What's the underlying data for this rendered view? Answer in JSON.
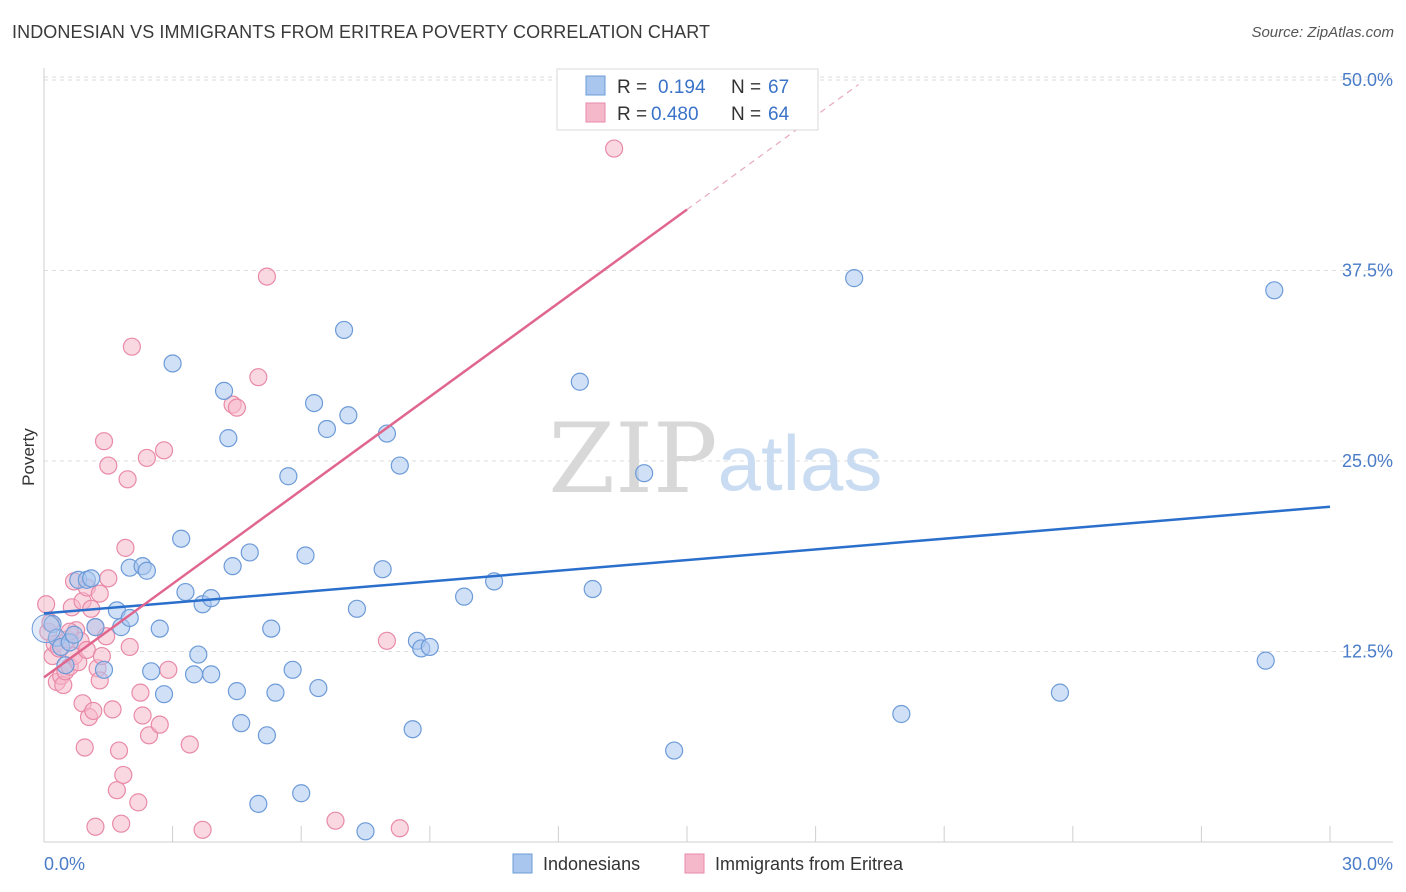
{
  "title": "INDONESIAN VS IMMIGRANTS FROM ERITREA POVERTY CORRELATION CHART",
  "source": "Source: ZipAtlas.com",
  "watermark": {
    "zip": "ZIP",
    "atlas": "atlas"
  },
  "colors": {
    "blue_fill": "#a9c7ee",
    "blue_stroke": "#6d9bd8",
    "blue_line": "#2b6fcc",
    "pink_fill": "#f5b8cb",
    "pink_stroke": "#e88aa8",
    "pink_line": "#e0668e",
    "tick_text": "#4a7cc7",
    "grid": "#dddddd"
  },
  "legend_box": {
    "rows": [
      {
        "r_label": "R =",
        "r_value": "0.194",
        "n_label": "N =",
        "n_value": "67"
      },
      {
        "r_label": "R =",
        "r_value": "0.480",
        "n_label": "N =",
        "n_value": "64"
      }
    ]
  },
  "bottom_legend": [
    "Indonesians",
    "Immigrants from Eritrea"
  ],
  "chart_data": {
    "type": "scatter",
    "title": "INDONESIAN VS IMMIGRANTS FROM ERITREA POVERTY CORRELATION CHART",
    "xlabel": "",
    "ylabel": "Poverty",
    "xlim": [
      0,
      30
    ],
    "ylim": [
      0,
      50
    ],
    "x_tick_labels": [
      "0.0%",
      "30.0%"
    ],
    "y_ticks": [
      12.5,
      25.0,
      37.5,
      50.0
    ],
    "y_tick_labels": [
      "12.5%",
      "25.0%",
      "37.5%",
      "50.0%"
    ],
    "grid": true,
    "legend_placement": "top-center",
    "series": [
      {
        "name": "Indonesians",
        "r": 0.194,
        "n": 67,
        "trend": {
          "x": [
            0,
            30
          ],
          "y": [
            15.0,
            22.0
          ]
        },
        "points": [
          [
            0.2,
            14.3
          ],
          [
            0.3,
            13.4
          ],
          [
            0.4,
            12.8
          ],
          [
            0.5,
            11.6
          ],
          [
            0.6,
            13.1
          ],
          [
            0.7,
            13.6
          ],
          [
            0.8,
            17.2
          ],
          [
            1.0,
            17.2
          ],
          [
            1.1,
            17.3
          ],
          [
            1.2,
            14.1
          ],
          [
            1.4,
            11.3
          ],
          [
            1.7,
            15.2
          ],
          [
            1.8,
            14.1
          ],
          [
            2.0,
            14.7
          ],
          [
            2.0,
            18.0
          ],
          [
            2.3,
            18.1
          ],
          [
            2.4,
            17.8
          ],
          [
            2.5,
            11.2
          ],
          [
            2.7,
            14.0
          ],
          [
            2.8,
            9.7
          ],
          [
            3.0,
            31.4
          ],
          [
            3.2,
            19.9
          ],
          [
            3.3,
            16.4
          ],
          [
            3.5,
            11.0
          ],
          [
            3.6,
            12.3
          ],
          [
            3.7,
            15.6
          ],
          [
            3.9,
            16.0
          ],
          [
            3.9,
            11.0
          ],
          [
            4.2,
            29.6
          ],
          [
            4.3,
            26.5
          ],
          [
            4.4,
            18.1
          ],
          [
            4.5,
            9.9
          ],
          [
            4.6,
            7.8
          ],
          [
            4.8,
            19.0
          ],
          [
            5.0,
            2.5
          ],
          [
            5.2,
            7.0
          ],
          [
            5.3,
            14.0
          ],
          [
            5.4,
            9.8
          ],
          [
            5.7,
            24.0
          ],
          [
            5.8,
            11.3
          ],
          [
            6.0,
            3.2
          ],
          [
            6.1,
            18.8
          ],
          [
            6.3,
            28.8
          ],
          [
            6.4,
            10.1
          ],
          [
            6.6,
            27.1
          ],
          [
            7.0,
            33.6
          ],
          [
            7.1,
            28.0
          ],
          [
            7.3,
            15.3
          ],
          [
            7.5,
            0.7
          ],
          [
            7.9,
            17.9
          ],
          [
            8.0,
            26.8
          ],
          [
            8.3,
            24.7
          ],
          [
            8.6,
            7.4
          ],
          [
            8.7,
            13.2
          ],
          [
            8.8,
            12.7
          ],
          [
            9.0,
            12.8
          ],
          [
            9.8,
            16.1
          ],
          [
            10.5,
            17.1
          ],
          [
            12.5,
            30.2
          ],
          [
            12.8,
            16.6
          ],
          [
            14.0,
            24.2
          ],
          [
            14.7,
            6.0
          ],
          [
            18.9,
            37.0
          ],
          [
            20.0,
            8.4
          ],
          [
            23.7,
            9.8
          ],
          [
            28.5,
            11.9
          ],
          [
            28.7,
            36.2
          ]
        ]
      },
      {
        "name": "Immigrants from Eritrea",
        "r": 0.48,
        "n": 64,
        "trend": {
          "x": [
            0,
            15
          ],
          "y": [
            10.8,
            41.5
          ]
        },
        "trend_dashed": {
          "x": [
            15,
            19
          ],
          "y": [
            41.5,
            49.7
          ]
        },
        "points": [
          [
            0.05,
            15.6
          ],
          [
            0.1,
            13.8
          ],
          [
            0.15,
            14.4
          ],
          [
            0.2,
            12.2
          ],
          [
            0.25,
            13.0
          ],
          [
            0.3,
            10.5
          ],
          [
            0.35,
            12.7
          ],
          [
            0.4,
            10.9
          ],
          [
            0.45,
            10.3
          ],
          [
            0.5,
            11.2
          ],
          [
            0.55,
            13.3
          ],
          [
            0.6,
            11.5
          ],
          [
            0.65,
            15.4
          ],
          [
            0.7,
            17.1
          ],
          [
            0.7,
            12.2
          ],
          [
            0.75,
            13.9
          ],
          [
            0.8,
            11.8
          ],
          [
            0.85,
            13.2
          ],
          [
            0.9,
            15.8
          ],
          [
            0.9,
            9.1
          ],
          [
            0.95,
            6.2
          ],
          [
            1.0,
            16.7
          ],
          [
            1.0,
            12.6
          ],
          [
            1.05,
            8.2
          ],
          [
            1.1,
            15.3
          ],
          [
            1.15,
            8.6
          ],
          [
            1.2,
            14.1
          ],
          [
            1.25,
            11.4
          ],
          [
            1.3,
            10.6
          ],
          [
            1.35,
            12.2
          ],
          [
            1.3,
            16.3
          ],
          [
            1.4,
            26.3
          ],
          [
            1.45,
            13.5
          ],
          [
            1.5,
            24.7
          ],
          [
            1.5,
            17.3
          ],
          [
            1.6,
            8.7
          ],
          [
            1.7,
            3.4
          ],
          [
            1.75,
            6.0
          ],
          [
            1.8,
            1.2
          ],
          [
            1.85,
            4.4
          ],
          [
            1.9,
            19.3
          ],
          [
            1.95,
            23.8
          ],
          [
            2.0,
            12.8
          ],
          [
            2.05,
            32.5
          ],
          [
            2.2,
            2.6
          ],
          [
            2.25,
            9.8
          ],
          [
            2.4,
            25.2
          ],
          [
            2.45,
            7.0
          ],
          [
            2.7,
            7.7
          ],
          [
            2.8,
            25.7
          ],
          [
            2.9,
            11.3
          ],
          [
            3.4,
            6.4
          ],
          [
            3.7,
            0.8
          ],
          [
            4.4,
            28.7
          ],
          [
            4.5,
            28.5
          ],
          [
            5.0,
            30.5
          ],
          [
            5.2,
            37.1
          ],
          [
            6.8,
            1.4
          ],
          [
            8.0,
            13.2
          ],
          [
            8.3,
            0.9
          ],
          [
            1.2,
            1.0
          ],
          [
            2.3,
            8.3
          ],
          [
            13.3,
            45.5
          ],
          [
            0.6,
            13.8
          ]
        ]
      }
    ]
  }
}
